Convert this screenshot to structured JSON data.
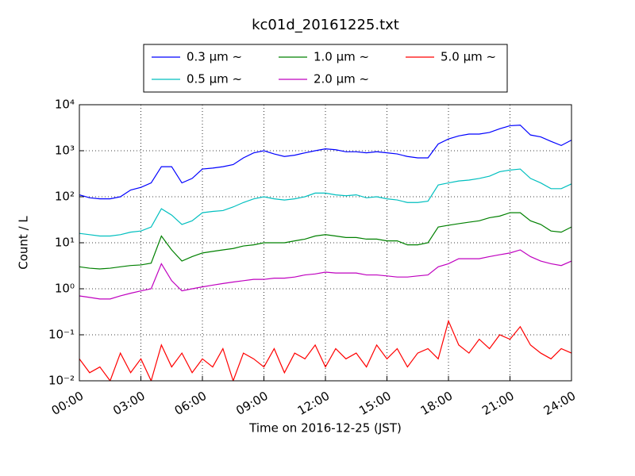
{
  "chart_data": {
    "type": "line",
    "title": "kc01d_20161225.txt",
    "x_label": "Time on 2016-12-25 (JST)",
    "y_label": "Count / L",
    "log_y": true,
    "grid": true,
    "x": [
      0,
      0.5,
      1,
      1.5,
      2,
      2.5,
      3,
      3.5,
      4,
      4.5,
      5,
      5.5,
      6,
      6.5,
      7,
      7.5,
      8,
      8.5,
      9,
      9.5,
      10,
      10.5,
      11,
      11.5,
      12,
      12.5,
      13,
      13.5,
      14,
      14.5,
      15,
      15.5,
      16,
      16.5,
      17,
      17.5,
      18,
      18.5,
      19,
      19.5,
      20,
      20.5,
      21,
      21.5,
      22,
      22.5,
      23,
      23.5,
      24
    ],
    "xlim": [
      0,
      24
    ],
    "xticks": [
      {
        "value": 0,
        "label": "00:00"
      },
      {
        "value": 3,
        "label": "03:00"
      },
      {
        "value": 6,
        "label": "06:00"
      },
      {
        "value": 9,
        "label": "09:00"
      },
      {
        "value": 12,
        "label": "12:00"
      },
      {
        "value": 15,
        "label": "15:00"
      },
      {
        "value": 18,
        "label": "18:00"
      },
      {
        "value": 21,
        "label": "21:00"
      },
      {
        "value": 24,
        "label": "24:00"
      }
    ],
    "ylim": [
      0.01,
      10000
    ],
    "yticks": [
      {
        "value": 0.01,
        "label": "10⁻²"
      },
      {
        "value": 0.1,
        "label": "10⁻¹"
      },
      {
        "value": 1,
        "label": "10⁰"
      },
      {
        "value": 10,
        "label": "10¹"
      },
      {
        "value": 100,
        "label": "10²"
      },
      {
        "value": 1000,
        "label": "10³"
      },
      {
        "value": 10000,
        "label": "10⁴"
      }
    ],
    "series": [
      {
        "name": "0.3 μm ~",
        "color": "#0000ff",
        "values": [
          110,
          95,
          90,
          90,
          100,
          140,
          160,
          200,
          450,
          450,
          200,
          250,
          400,
          420,
          450,
          500,
          700,
          900,
          1000,
          850,
          750,
          800,
          900,
          1000,
          1100,
          1050,
          950,
          950,
          900,
          950,
          900,
          850,
          750,
          700,
          700,
          1400,
          1800,
          2100,
          2300,
          2300,
          2500,
          3000,
          3500,
          3600,
          2200,
          2000,
          1600,
          1300,
          1700
        ]
      },
      {
        "name": "0.5 μm ~",
        "color": "#00bfbf",
        "values": [
          16,
          15,
          14,
          14,
          15,
          17,
          18,
          22,
          55,
          40,
          25,
          30,
          45,
          48,
          50,
          60,
          75,
          90,
          100,
          90,
          85,
          90,
          100,
          120,
          120,
          110,
          105,
          110,
          95,
          100,
          90,
          85,
          75,
          75,
          80,
          180,
          200,
          220,
          230,
          250,
          280,
          350,
          380,
          400,
          250,
          200,
          150,
          150,
          190
        ]
      },
      {
        "name": "1.0 μm ~",
        "color": "#008000",
        "values": [
          3,
          2.8,
          2.7,
          2.8,
          3,
          3.2,
          3.3,
          3.6,
          14,
          7,
          4,
          5,
          6,
          6.5,
          7,
          7.5,
          8.5,
          9,
          10,
          10,
          10,
          11,
          12,
          14,
          15,
          14,
          13,
          13,
          12,
          12,
          11,
          11,
          9,
          9,
          10,
          22,
          24,
          26,
          28,
          30,
          35,
          38,
          45,
          45,
          30,
          25,
          18,
          17,
          22
        ]
      },
      {
        "name": "2.0 μm ~",
        "color": "#bf00bf",
        "values": [
          0.7,
          0.65,
          0.6,
          0.6,
          0.7,
          0.8,
          0.9,
          1,
          3.5,
          1.5,
          0.9,
          1,
          1.1,
          1.2,
          1.3,
          1.4,
          1.5,
          1.6,
          1.6,
          1.7,
          1.7,
          1.8,
          2,
          2.1,
          2.3,
          2.2,
          2.2,
          2.2,
          2,
          2,
          1.9,
          1.8,
          1.8,
          1.9,
          2,
          3,
          3.5,
          4.5,
          4.5,
          4.5,
          5,
          5.5,
          6,
          7,
          5,
          4,
          3.5,
          3.2,
          4
        ]
      },
      {
        "name": "5.0 μm ~",
        "color": "#ff0000",
        "values": [
          0.03,
          0.015,
          0.02,
          0.01,
          0.04,
          0.015,
          0.03,
          0.01,
          0.06,
          0.02,
          0.04,
          0.015,
          0.03,
          0.02,
          0.05,
          0.01,
          0.04,
          0.03,
          0.02,
          0.05,
          0.015,
          0.04,
          0.03,
          0.06,
          0.02,
          0.05,
          0.03,
          0.04,
          0.02,
          0.06,
          0.03,
          0.05,
          0.02,
          0.04,
          0.05,
          0.03,
          0.2,
          0.06,
          0.04,
          0.08,
          0.05,
          0.1,
          0.08,
          0.15,
          0.06,
          0.04,
          0.03,
          0.05,
          0.04
        ]
      }
    ],
    "legend": "upper-center"
  }
}
